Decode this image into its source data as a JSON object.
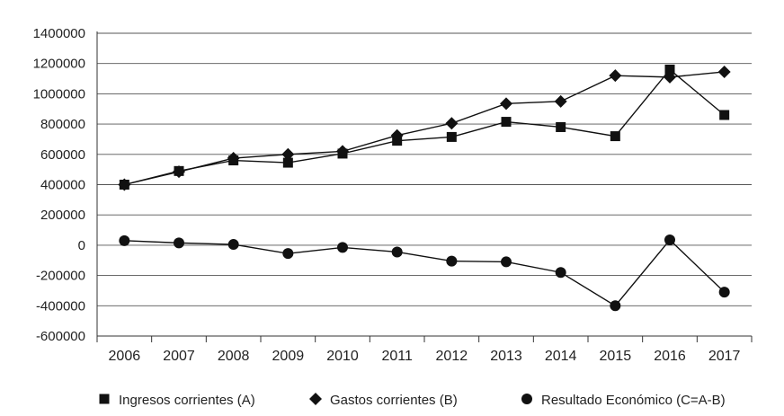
{
  "chart_data": {
    "type": "line",
    "categories": [
      "2006",
      "2007",
      "2008",
      "2009",
      "2010",
      "2011",
      "2012",
      "2013",
      "2014",
      "2015",
      "2016",
      "2017"
    ],
    "ylim": [
      -600000,
      1400000
    ],
    "yticks": [
      1400000,
      1200000,
      1000000,
      800000,
      600000,
      400000,
      200000,
      0,
      -200000,
      -400000,
      -600000
    ],
    "ytick_labels": [
      "1400000",
      "1200000",
      "1000000",
      "800000",
      "600000",
      "400000",
      "200000",
      "0",
      "-200000",
      "-400000",
      "-600000"
    ],
    "grid": true,
    "legend_position": "bottom",
    "series": [
      {
        "name": "Ingresos corrientes (A)",
        "marker": "square",
        "values": [
          400000,
          490000,
          560000,
          545000,
          605000,
          690000,
          715000,
          815000,
          780000,
          720000,
          1160000,
          860000
        ]
      },
      {
        "name": "Gastos corrientes (B)",
        "marker": "diamond",
        "values": [
          400000,
          485000,
          575000,
          600000,
          620000,
          725000,
          805000,
          935000,
          950000,
          1120000,
          1110000,
          1145000
        ]
      },
      {
        "name": "Resultado Económico (C=A-B)",
        "marker": "circle",
        "values": [
          30000,
          15000,
          5000,
          -55000,
          -15000,
          -45000,
          -105000,
          -110000,
          -180000,
          -400000,
          35000,
          -310000
        ]
      }
    ],
    "colors": {
      "line": "#111111",
      "grid": "#555555",
      "axis": "#333333"
    }
  }
}
